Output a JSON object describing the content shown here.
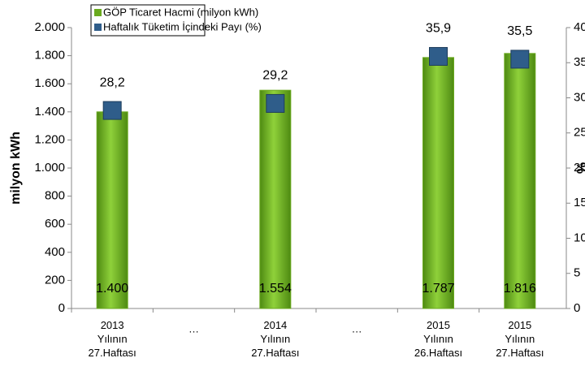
{
  "chart_data": {
    "type": "bar_line",
    "y_label": "milyon kWh",
    "y2_label": "%",
    "categories": [
      "2013 Yılının 27.Haftası",
      "…",
      "2014 Yılının 27.Haftası",
      "…",
      "2015 Yılının 26.Haftası",
      "2015 Yılının 27.Haftası"
    ],
    "series": [
      {
        "name": "GÖP Ticaret Hacmi (milyon kWh)",
        "color": "#6aaa1e",
        "values": [
          1400,
          null,
          1554,
          null,
          1787,
          1816
        ],
        "value_labels": [
          "1.400",
          null,
          "1.554",
          null,
          "1.787",
          "1.816"
        ]
      },
      {
        "name": "Haftalık Tüketim İçindeki Payı (%)",
        "color": "#2f5d8a",
        "axis": "y2",
        "values": [
          28.2,
          null,
          29.2,
          null,
          35.9,
          35.5
        ],
        "value_labels": [
          "28,2",
          null,
          "29,2",
          null,
          "35,9",
          "35,5"
        ]
      }
    ],
    "ylim": [
      0,
      2000
    ],
    "yticks": [
      0,
      200,
      400,
      600,
      800,
      {
        "value": 1000,
        "label": "1.000"
      },
      {
        "value": 1200,
        "label": "1.200"
      },
      {
        "value": 1400,
        "label": "1.400"
      },
      {
        "value": 1600,
        "label": "1.600"
      },
      {
        "value": 1800,
        "label": "1.800"
      },
      {
        "value": 2000,
        "label": "2.000"
      }
    ],
    "y2lim": [
      0,
      40
    ],
    "y2ticks": [
      0,
      5,
      10,
      15,
      20,
      25,
      30,
      35,
      40
    ]
  }
}
